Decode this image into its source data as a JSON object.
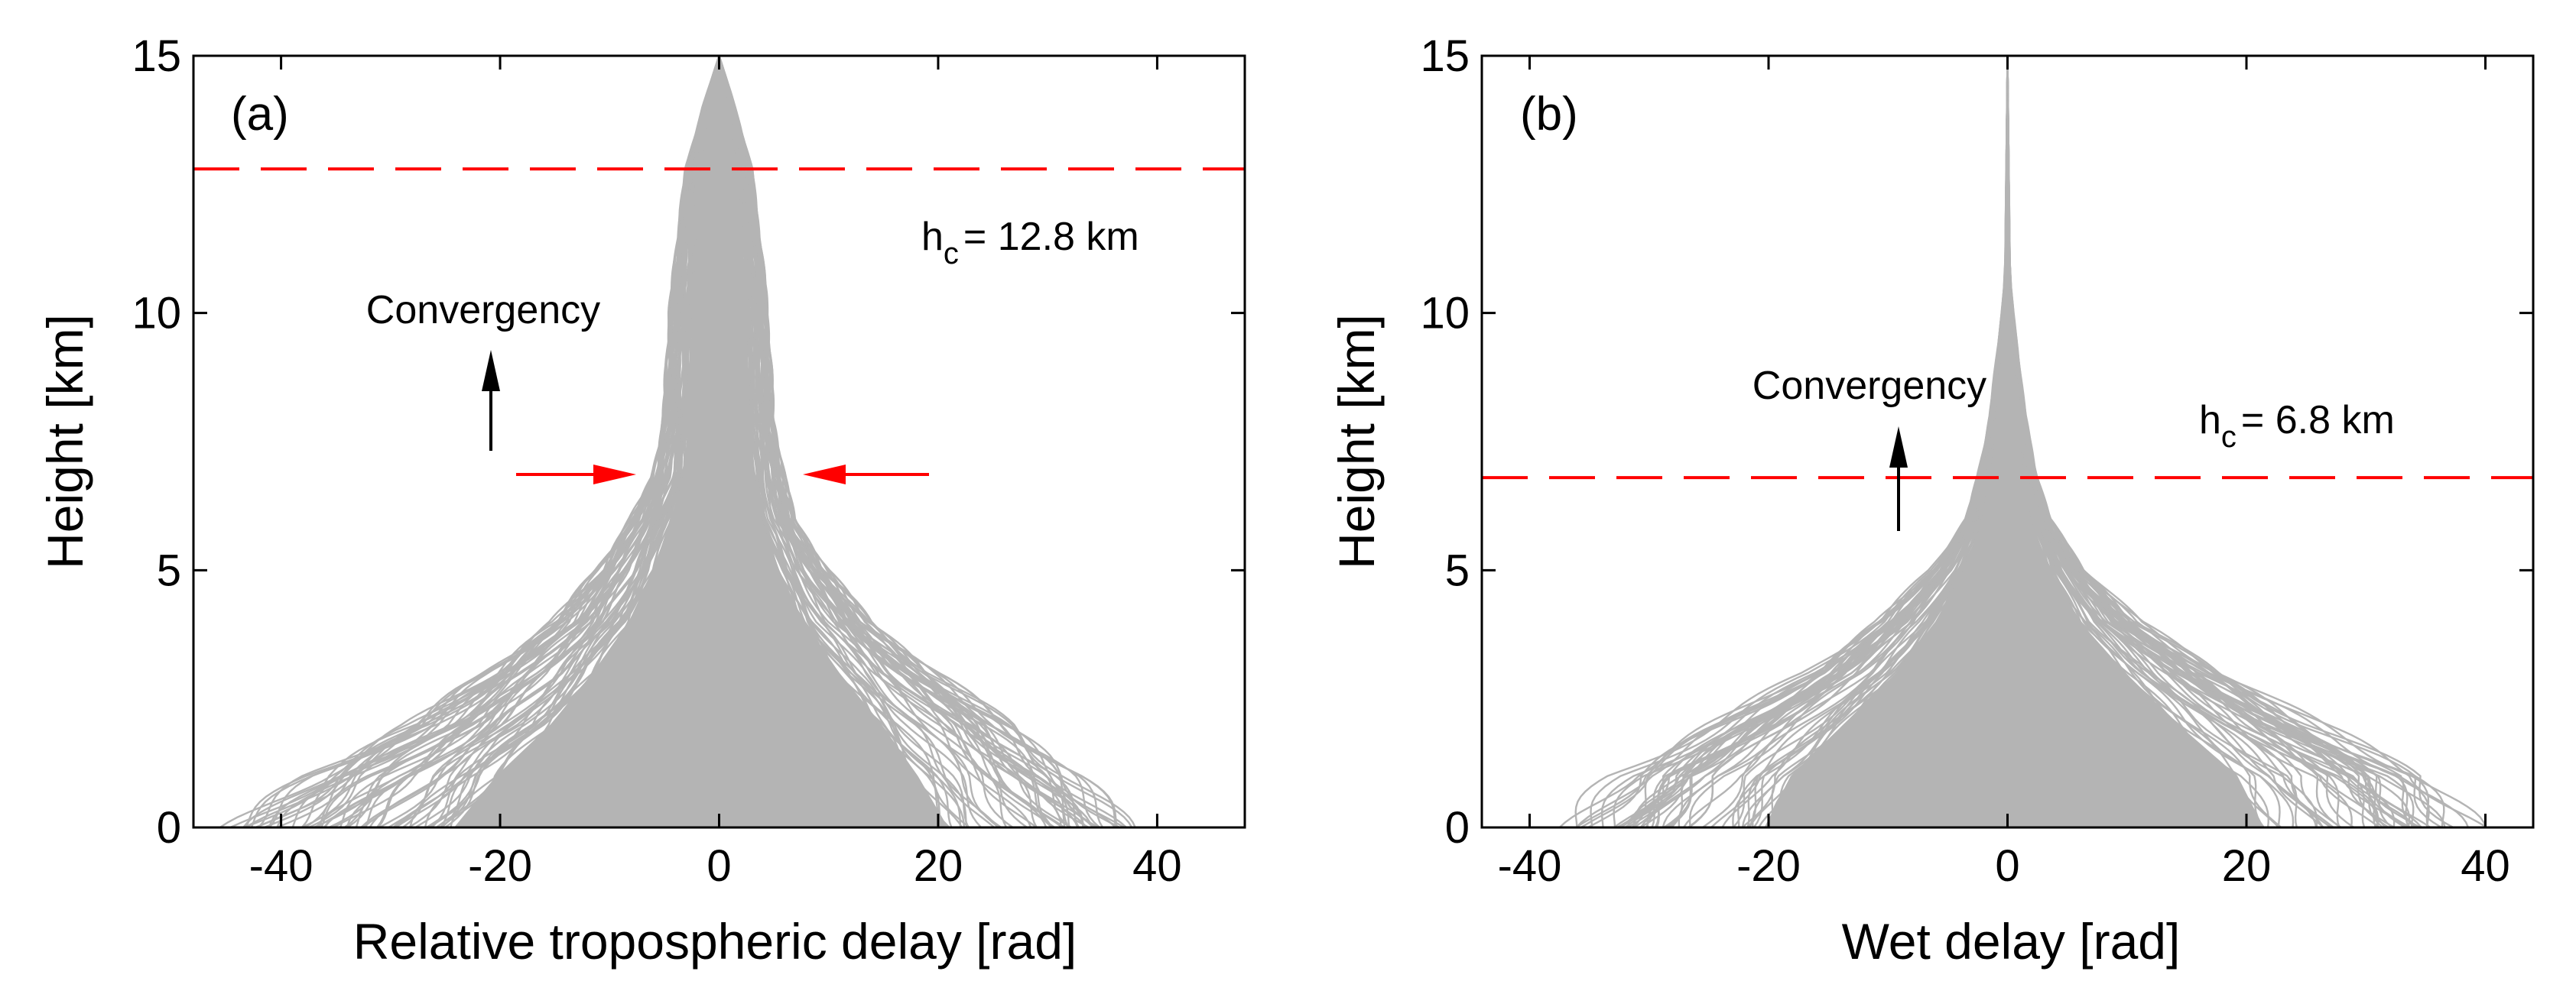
{
  "chart_data": [
    {
      "type": "line",
      "panel_label": "(a)",
      "xlabel": "Relative tropospheric delay [rad]",
      "ylabel": "Height [km]",
      "xlim": [
        -48,
        48
      ],
      "ylim": [
        0,
        15
      ],
      "xticks": [
        -40,
        -20,
        0,
        20,
        40
      ],
      "xtick_labels": [
        "-40",
        "-20",
        "0",
        "20",
        "40"
      ],
      "yticks": [
        0,
        5,
        10,
        15
      ],
      "ytick_labels": [
        "0",
        "5",
        "10",
        "15"
      ],
      "series": [
        {
          "name": "delay profiles (ensemble of gray curves)",
          "color": "#b4b4b4",
          "envelope_height_km": [
            0,
            1,
            2,
            3,
            4,
            5,
            6,
            6.8,
            8,
            10,
            12,
            12.8,
            14,
            15
          ],
          "envelope_left_rad": [
            -44,
            -37,
            -28,
            -21,
            -15,
            -11,
            -8,
            -6,
            -5,
            -4.5,
            -3.5,
            -3,
            -1.5,
            0
          ],
          "envelope_right_rad": [
            38,
            33,
            27,
            20,
            14,
            10,
            7,
            6,
            5,
            4.5,
            3.5,
            3,
            1.5,
            0
          ]
        }
      ],
      "reference_line": {
        "height_km": 12.8,
        "style": "dashed",
        "color": "#ff0000"
      },
      "annotations": {
        "hc_prefix": "h",
        "hc_sub": "c",
        "hc_value": "= 12.8 km",
        "convergency": "Convergency",
        "arrow_height_km": 6.8
      }
    },
    {
      "type": "line",
      "panel_label": "(b)",
      "xlabel": "Wet delay [rad]",
      "ylabel": "Height [km]",
      "xlim": [
        -44,
        44
      ],
      "ylim": [
        0,
        15
      ],
      "xticks": [
        -40,
        -20,
        0,
        20,
        40
      ],
      "xtick_labels": [
        "-40",
        "-20",
        "0",
        "20",
        "40"
      ],
      "yticks": [
        0,
        5,
        10,
        15
      ],
      "ytick_labels": [
        "0",
        "5",
        "10",
        "15"
      ],
      "series": [
        {
          "name": "wet delay profiles (ensemble of gray curves)",
          "color": "#b4b4b4",
          "envelope_height_km": [
            0,
            1,
            2,
            3,
            4,
            5,
            6,
            6.8,
            8,
            9,
            10,
            10.5,
            11,
            15
          ],
          "envelope_left_rad": [
            -37,
            -33,
            -25,
            -17,
            -11,
            -6.5,
            -3.5,
            -2.5,
            -1.5,
            -1,
            -0.5,
            -0.3,
            -0.2,
            0
          ],
          "envelope_right_rad": [
            39,
            35,
            26,
            18,
            11,
            6.5,
            3.5,
            2.5,
            1.5,
            1,
            0.5,
            0.3,
            0.2,
            0
          ]
        }
      ],
      "reference_line": {
        "height_km": 6.8,
        "style": "dashed",
        "color": "#ff0000"
      },
      "annotations": {
        "hc_prefix": "h",
        "hc_sub": "c",
        "hc_value": "= 6.8 km",
        "convergency": "Convergency"
      }
    }
  ]
}
